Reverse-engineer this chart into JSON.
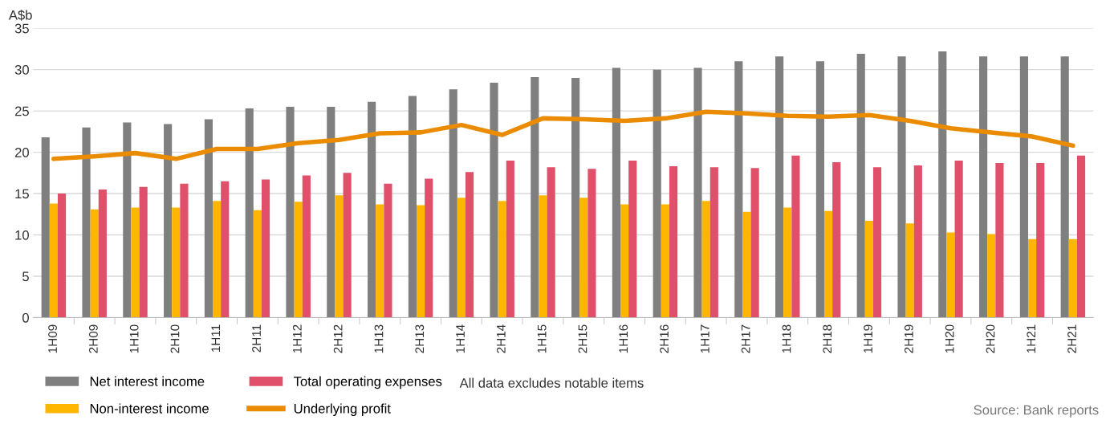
{
  "chart_data": {
    "type": "bar",
    "ylabel": "A$b",
    "categories": [
      "1H09",
      "2H09",
      "1H10",
      "2H10",
      "1H11",
      "2H11",
      "1H12",
      "2H12",
      "1H13",
      "2H13",
      "1H14",
      "2H14",
      "1H15",
      "2H15",
      "1H16",
      "2H16",
      "1H17",
      "2H17",
      "1H18",
      "2H18",
      "1H19",
      "2H19",
      "1H20",
      "2H20",
      "1H21",
      "2H21"
    ],
    "series": [
      {
        "name": "Net interest income",
        "color": "#7f7f7f",
        "values": [
          21.8,
          23.0,
          23.6,
          23.4,
          24.0,
          25.3,
          25.5,
          25.5,
          26.1,
          26.8,
          27.6,
          28.4,
          29.1,
          29.0,
          30.2,
          30.0,
          30.2,
          31.0,
          31.6,
          31.0,
          31.9,
          31.6,
          32.2,
          31.6,
          31.6,
          31.6
        ]
      },
      {
        "name": "Non-interest income",
        "color": "#ffb600",
        "values": [
          13.8,
          13.1,
          13.3,
          13.3,
          14.1,
          13.0,
          14.0,
          14.8,
          13.7,
          13.6,
          14.5,
          14.1,
          14.8,
          14.5,
          13.7,
          13.7,
          14.1,
          12.8,
          13.3,
          12.9,
          11.7,
          11.4,
          10.3,
          10.1,
          9.5,
          9.5
        ]
      },
      {
        "name": "Total operating expenses",
        "color": "#e0506a",
        "values": [
          15.0,
          15.5,
          15.8,
          16.2,
          16.5,
          16.7,
          17.2,
          17.5,
          16.2,
          16.8,
          17.6,
          19.0,
          18.2,
          18.0,
          19.0,
          18.3,
          18.2,
          18.1,
          19.6,
          18.8,
          18.2,
          18.4,
          19.0,
          18.7,
          18.7,
          19.6
        ]
      },
      {
        "name": "Underlying profit",
        "type": "line",
        "color": "#eb8c00",
        "values": [
          19.2,
          19.5,
          19.9,
          19.2,
          20.4,
          20.4,
          21.1,
          21.5,
          22.3,
          22.4,
          23.3,
          22.1,
          24.1,
          24.0,
          23.8,
          24.1,
          24.9,
          24.7,
          24.4,
          24.3,
          24.5,
          23.8,
          22.9,
          22.4,
          21.9,
          20.8
        ]
      }
    ],
    "ylim": [
      0,
      35
    ],
    "yticks": [
      0,
      5,
      10,
      15,
      20,
      25,
      30,
      35
    ],
    "grid": "y",
    "legend": "bottom left",
    "annotations": [
      "All data excludes notable items",
      "Source: Bank reports"
    ]
  }
}
